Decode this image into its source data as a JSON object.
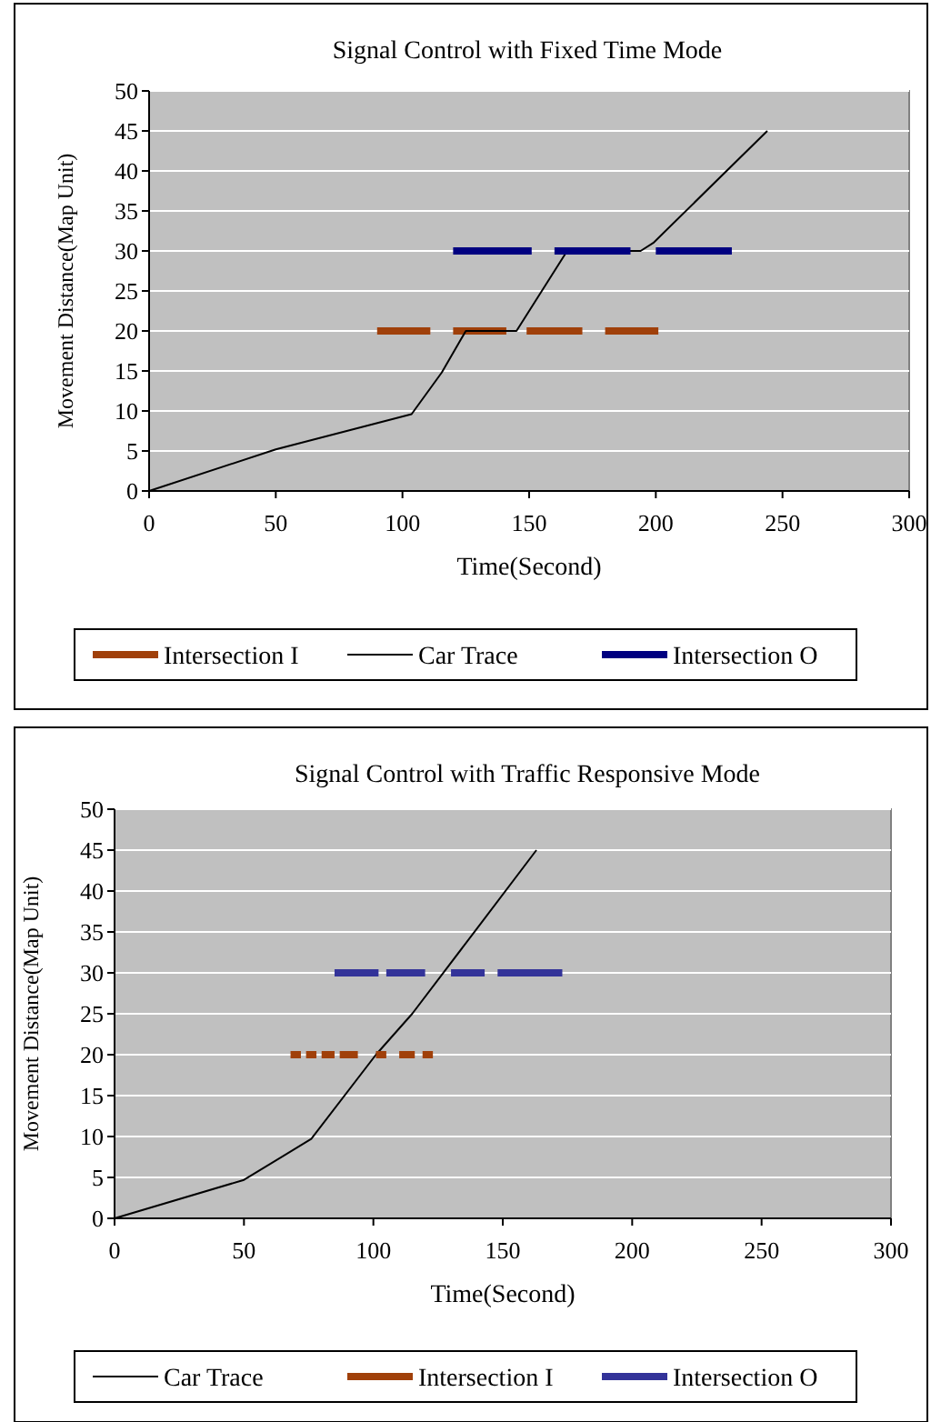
{
  "chart_data": [
    {
      "type": "line",
      "title": "Signal Control with Fixed Time Mode",
      "xlabel": "Time(Second)",
      "ylabel": "Movement Distance(Map Unit)",
      "xlim": [
        0,
        300
      ],
      "xticks": [
        0,
        50,
        100,
        150,
        200,
        250,
        300
      ],
      "ylim": [
        0,
        50
      ],
      "yticks": [
        0,
        5,
        10,
        15,
        20,
        25,
        30,
        35,
        40,
        45,
        50
      ],
      "grid": "y",
      "legend": "bottom",
      "series": [
        {
          "name": "Intersection I",
          "color": "#a0400a",
          "x": [
            90,
            111,
            null,
            120,
            141,
            null,
            149,
            171,
            null,
            180,
            201
          ],
          "values": [
            20,
            20,
            null,
            20,
            20,
            null,
            20,
            20,
            null,
            20,
            20
          ]
        },
        {
          "name": "Car Trace",
          "color": "#000000",
          "x": [
            0,
            50,
            103.6,
            115.5,
            125,
            145,
            165,
            194,
            199,
            244
          ],
          "values": [
            0,
            5.2,
            9.6,
            14.8,
            20,
            20,
            30,
            30,
            31,
            45
          ]
        },
        {
          "name": "Intersection O",
          "color": "#000080",
          "x": [
            120,
            151,
            null,
            160,
            190,
            null,
            200,
            230
          ],
          "values": [
            30,
            30,
            null,
            30,
            30,
            null,
            30,
            30
          ]
        }
      ]
    },
    {
      "type": "line",
      "title": "Signal Control with Traffic Responsive Mode",
      "xlabel": "Time(Second)",
      "ylabel": "Movement Distance(Map Unit)",
      "xlim": [
        0,
        300
      ],
      "xticks": [
        0,
        50,
        100,
        150,
        200,
        250,
        300
      ],
      "ylim": [
        0,
        50
      ],
      "yticks": [
        0,
        5,
        10,
        15,
        20,
        25,
        30,
        35,
        40,
        45,
        50
      ],
      "grid": "y",
      "legend": "bottom",
      "series": [
        {
          "name": "Car Trace",
          "color": "#000000",
          "x": [
            0,
            50,
            76,
            101,
            115,
            140,
            163
          ],
          "values": [
            0,
            4.7,
            9.7,
            20,
            25,
            35.4,
            45
          ]
        },
        {
          "name": "Intersection I",
          "color": "#a0400a",
          "x": [
            68,
            72,
            null,
            74,
            78,
            null,
            80,
            85,
            null,
            87,
            94,
            null,
            101,
            105,
            null,
            110,
            116,
            null,
            119,
            123
          ],
          "values": [
            20,
            20,
            null,
            20,
            20,
            null,
            20,
            20,
            null,
            20,
            20,
            null,
            20,
            20,
            null,
            20,
            20,
            null,
            20,
            20
          ]
        },
        {
          "name": "Intersection O",
          "color": "#333399",
          "x": [
            85,
            102,
            null,
            105,
            120,
            null,
            130,
            143,
            null,
            148,
            173
          ],
          "values": [
            30,
            30,
            null,
            30,
            30,
            null,
            30,
            30,
            null,
            30,
            30
          ]
        }
      ]
    }
  ]
}
